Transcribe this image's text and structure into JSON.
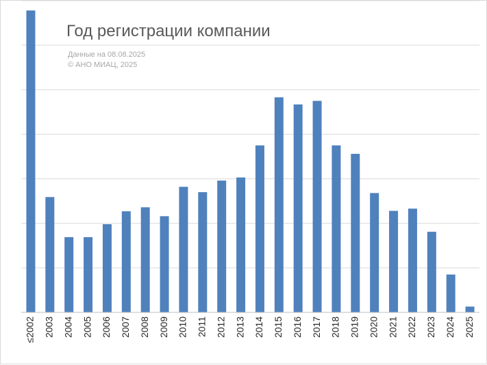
{
  "chart_data": {
    "type": "bar",
    "title": "Год регистрации компании",
    "notes": [
      "Данные на 08.08.2025",
      "© АНО МИАЦ, 2025"
    ],
    "categories": [
      "≤2002",
      "2003",
      "2004",
      "2005",
      "2006",
      "2007",
      "2008",
      "2009",
      "2010",
      "2011",
      "2012",
      "2013",
      "2014",
      "2015",
      "2016",
      "2017",
      "2018",
      "2019",
      "2020",
      "2021",
      "2022",
      "2023",
      "2024",
      "2025"
    ],
    "values": [
      6.78,
      2.59,
      1.69,
      1.69,
      1.98,
      2.27,
      2.36,
      2.16,
      2.82,
      2.7,
      2.96,
      3.03,
      3.75,
      4.83,
      4.67,
      4.75,
      3.75,
      3.56,
      2.68,
      2.28,
      2.33,
      1.81,
      0.85,
      0.13
    ],
    "ylim": [
      0,
      7
    ],
    "grid": true,
    "colors": {
      "bar": "#4f81bd",
      "grid": "#d9d9d9",
      "axis": "#bfbfbf",
      "title": "#595959",
      "notes": "#a6a6a6",
      "ticks": "#262626"
    }
  }
}
